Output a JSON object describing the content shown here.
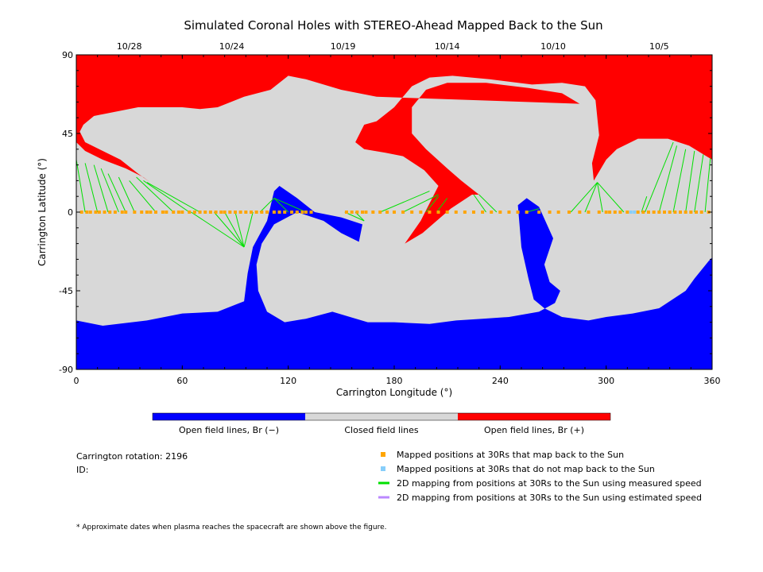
{
  "chart_data": {
    "type": "heatmap",
    "title": "Simulated Coronal Holes with STEREO-Ahead Mapped Back to the Sun",
    "xlabel": "Carrington Longitude (°)",
    "ylabel": "Carrington Latitude (°)",
    "xlim": [
      0,
      360
    ],
    "ylim": [
      -90,
      90
    ],
    "x_ticks": [
      "0",
      "60",
      "120",
      "180",
      "240",
      "300",
      "360"
    ],
    "y_ticks": [
      "-90",
      "-45",
      "0",
      "45",
      "90"
    ],
    "top_dates": [
      {
        "label": "10/28",
        "lon": 30
      },
      {
        "label": "10/24",
        "lon": 88
      },
      {
        "label": "10/19",
        "lon": 151
      },
      {
        "label": "10/14",
        "lon": 210
      },
      {
        "label": "10/10",
        "lon": 270
      },
      {
        "label": "10/5",
        "lon": 330
      }
    ],
    "colorbar": [
      {
        "label": "Open field lines, Br (−)",
        "color": "#0000ff"
      },
      {
        "label": "Closed field lines",
        "color": "#d8d8d8"
      },
      {
        "label": "Open field lines, Br (+)",
        "color": "#ff0000"
      }
    ],
    "colors": {
      "negative": "#0000ff",
      "closed": "#d8d8d8",
      "positive": "#ff0000",
      "mapped": "#ffa500",
      "unmapped": "#87cefa",
      "measured": "#00e000",
      "estimated": "#bb88ff"
    },
    "regions": {
      "positive": [
        [
          [
            0,
            90
          ],
          [
            360,
            90
          ],
          [
            360,
            30
          ],
          [
            347,
            38
          ],
          [
            335,
            42
          ],
          [
            318,
            42
          ],
          [
            306,
            36
          ],
          [
            300,
            30
          ],
          [
            293,
            18
          ],
          [
            292,
            28
          ],
          [
            296,
            44
          ],
          [
            294,
            64
          ],
          [
            288,
            72
          ],
          [
            275,
            74
          ],
          [
            258,
            73
          ],
          [
            234,
            76
          ],
          [
            213,
            78
          ],
          [
            200,
            77
          ],
          [
            190,
            72
          ],
          [
            180,
            60
          ],
          [
            170,
            52
          ],
          [
            163,
            50
          ],
          [
            158,
            40
          ],
          [
            163,
            36
          ],
          [
            175,
            34
          ],
          [
            185,
            32
          ],
          [
            197,
            24
          ],
          [
            205,
            15
          ],
          [
            195,
            -5
          ],
          [
            186,
            -18
          ],
          [
            196,
            -12
          ],
          [
            212,
            2
          ],
          [
            224,
            10
          ],
          [
            228,
            10
          ],
          [
            218,
            18
          ],
          [
            210,
            25
          ],
          [
            198,
            36
          ],
          [
            190,
            45
          ],
          [
            190,
            60
          ],
          [
            198,
            70
          ],
          [
            210,
            74
          ],
          [
            232,
            74
          ],
          [
            256,
            71
          ],
          [
            275,
            68
          ],
          [
            285,
            62
          ],
          [
            170,
            66
          ],
          [
            150,
            70
          ],
          [
            130,
            76
          ],
          [
            120,
            78
          ],
          [
            110,
            70
          ],
          [
            95,
            66
          ],
          [
            80,
            60
          ],
          [
            70,
            59
          ],
          [
            60,
            60
          ],
          [
            35,
            60
          ],
          [
            10,
            55
          ],
          [
            4,
            50
          ],
          [
            2,
            46
          ],
          [
            5,
            40
          ],
          [
            15,
            35
          ],
          [
            25,
            30
          ],
          [
            35,
            22
          ],
          [
            42,
            17
          ],
          [
            38,
            20
          ],
          [
            28,
            25
          ],
          [
            15,
            30
          ],
          [
            5,
            35
          ],
          [
            0,
            40
          ]
        ]
      ],
      "negative": [
        [
          [
            0,
            -62
          ],
          [
            15,
            -65
          ],
          [
            40,
            -62
          ],
          [
            60,
            -58
          ],
          [
            80,
            -57
          ],
          [
            95,
            -51
          ],
          [
            97,
            -35
          ],
          [
            100,
            -20
          ],
          [
            108,
            -5
          ],
          [
            112,
            12
          ],
          [
            115,
            15
          ],
          [
            125,
            8
          ],
          [
            135,
            0
          ],
          [
            150,
            -3
          ],
          [
            162,
            -7
          ],
          [
            160,
            -17
          ],
          [
            150,
            -12
          ],
          [
            140,
            -5
          ],
          [
            125,
            0
          ],
          [
            112,
            -7
          ],
          [
            105,
            -18
          ],
          [
            102,
            -30
          ],
          [
            103,
            -45
          ],
          [
            108,
            -57
          ],
          [
            118,
            -63
          ],
          [
            130,
            -61
          ],
          [
            145,
            -57
          ],
          [
            155,
            -60
          ],
          [
            165,
            -63
          ],
          [
            180,
            -63
          ],
          [
            200,
            -64
          ],
          [
            215,
            -62
          ],
          [
            230,
            -61
          ],
          [
            245,
            -60
          ],
          [
            262,
            -57
          ],
          [
            271,
            -52
          ],
          [
            274,
            -45
          ],
          [
            268,
            -40
          ],
          [
            265,
            -30
          ],
          [
            270,
            -15
          ],
          [
            262,
            3
          ],
          [
            255,
            8
          ],
          [
            250,
            4
          ],
          [
            252,
            -20
          ],
          [
            256,
            -38
          ],
          [
            259,
            -50
          ],
          [
            265,
            -55
          ],
          [
            275,
            -60
          ],
          [
            290,
            -62
          ],
          [
            300,
            -60
          ],
          [
            315,
            -58
          ],
          [
            330,
            -55
          ],
          [
            345,
            -45
          ],
          [
            350,
            -38
          ],
          [
            358,
            -28
          ],
          [
            360,
            -26
          ],
          [
            360,
            -90
          ],
          [
            0,
            -90
          ]
        ]
      ]
    },
    "mapped_points_lon": [
      3,
      6,
      8,
      11,
      13,
      16,
      19,
      22,
      26,
      28,
      33,
      37,
      40,
      42,
      45,
      49,
      51,
      55,
      58,
      60,
      64,
      67,
      70,
      73,
      76,
      79,
      82,
      84,
      87,
      90,
      93,
      96,
      99,
      102,
      105,
      108,
      112,
      115,
      118,
      122,
      125,
      128,
      130,
      133,
      153,
      156,
      159,
      162,
      164,
      168,
      172,
      176,
      180,
      185,
      190,
      195,
      200,
      205,
      210,
      215,
      220,
      225,
      230,
      235,
      240,
      245,
      250,
      255,
      262,
      268,
      273,
      279,
      285,
      290,
      296,
      300,
      302,
      305,
      308,
      312,
      318,
      321,
      324,
      327,
      330,
      333,
      336,
      339,
      342,
      345,
      348,
      351,
      354,
      358
    ],
    "unmapped_points_lon": [
      314,
      316
    ],
    "mapping_lines": [
      {
        "lon": 0,
        "lat": 30,
        "to": 5
      },
      {
        "lon": 5,
        "lat": 28,
        "to": 12
      },
      {
        "lon": 10,
        "lat": 27,
        "to": 18
      },
      {
        "lon": 14,
        "lat": 25,
        "to": 24
      },
      {
        "lon": 18,
        "lat": 22,
        "to": 28
      },
      {
        "lon": 24,
        "lat": 20,
        "to": 33
      },
      {
        "lon": 30,
        "lat": 18,
        "to": 45
      },
      {
        "lon": 34,
        "lat": 20,
        "to": 55
      },
      {
        "lon": 38,
        "lat": 18,
        "to": 64
      },
      {
        "lon": 40,
        "lat": 17,
        "to": 70
      },
      {
        "lon": 95,
        "lat": -20,
        "to": 65
      },
      {
        "lon": 95,
        "lat": -20,
        "to": 78
      },
      {
        "lon": 95,
        "lat": -20,
        "to": 84
      },
      {
        "lon": 95,
        "lat": -20,
        "to": 90
      },
      {
        "lon": 95,
        "lat": -20,
        "to": 100
      },
      {
        "lon": 112,
        "lat": 8,
        "to": 104
      },
      {
        "lon": 112,
        "lat": 8,
        "to": 120
      },
      {
        "lon": 112,
        "lat": 8,
        "to": 130
      },
      {
        "lon": 163,
        "lat": -5,
        "to": 152
      },
      {
        "lon": 163,
        "lat": -5,
        "to": 158
      },
      {
        "lon": 200,
        "lat": 12,
        "to": 172
      },
      {
        "lon": 205,
        "lat": 10,
        "to": 185
      },
      {
        "lon": 205,
        "lat": 9,
        "to": 198
      },
      {
        "lon": 210,
        "lat": 8,
        "to": 204
      },
      {
        "lon": 225,
        "lat": 10,
        "to": 232
      },
      {
        "lon": 228,
        "lat": 10,
        "to": 238
      },
      {
        "lon": 262,
        "lat": 2,
        "to": 255
      },
      {
        "lon": 295,
        "lat": 17,
        "to": 280
      },
      {
        "lon": 295,
        "lat": 17,
        "to": 288
      },
      {
        "lon": 295,
        "lat": 17,
        "to": 298
      },
      {
        "lon": 295,
        "lat": 17,
        "to": 310
      },
      {
        "lon": 323,
        "lat": 9,
        "to": 320
      },
      {
        "lon": 338,
        "lat": 40,
        "to": 322
      },
      {
        "lon": 340,
        "lat": 38,
        "to": 330
      },
      {
        "lon": 345,
        "lat": 36,
        "to": 338
      },
      {
        "lon": 350,
        "lat": 35,
        "to": 345
      },
      {
        "lon": 355,
        "lat": 33,
        "to": 350
      },
      {
        "lon": 359,
        "lat": 31,
        "to": 356
      }
    ],
    "info": {
      "rotation_label": "Carrington rotation: 2196",
      "id_label": "ID:"
    },
    "legend": [
      {
        "label": "Mapped positions at 30Rs that map back to the Sun",
        "kind": "square",
        "color": "#ffa500"
      },
      {
        "label": "Mapped positions at 30Rs that do not map back to the Sun",
        "kind": "square",
        "color": "#87cefa"
      },
      {
        "label": "2D mapping from positions at 30Rs to the Sun using measured speed",
        "kind": "line",
        "color": "#00e000"
      },
      {
        "label": "2D mapping from positions at 30Rs to the Sun using estimated speed",
        "kind": "line",
        "color": "#bb88ff"
      }
    ],
    "footnote": "* Approximate dates when plasma reaches the spacecraft are shown above the figure."
  }
}
